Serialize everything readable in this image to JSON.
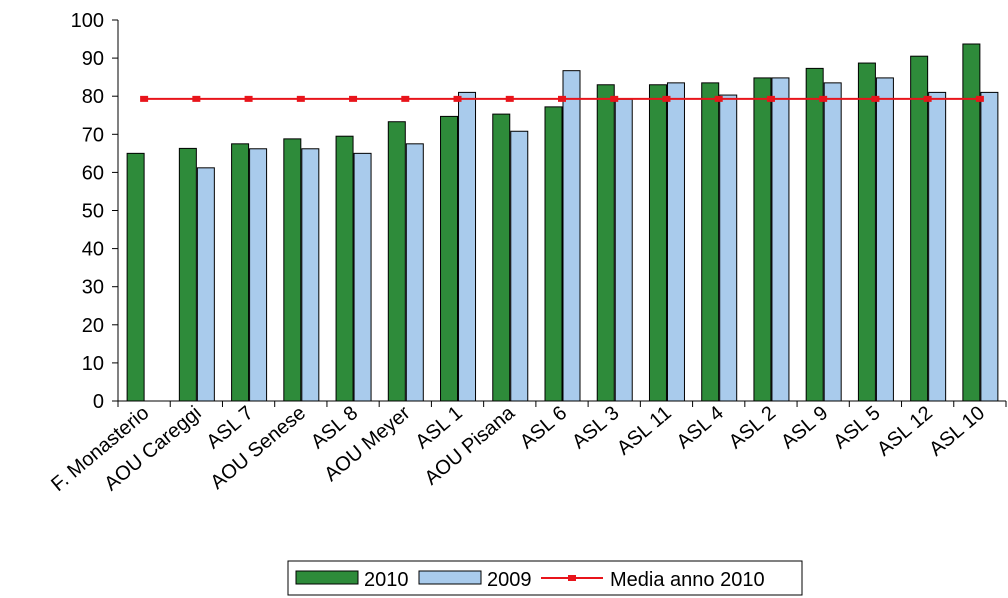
{
  "chart_data": {
    "type": "bar",
    "categories": [
      "F. Monasterio",
      "AOU Careggi",
      "ASL 7",
      "AOU Senese",
      "ASL 8",
      "AOU Meyer",
      "ASL 1",
      "AOU Pisana",
      "ASL 6",
      "ASL 3",
      "ASL 11",
      "ASL 4",
      "ASL 2",
      "ASL 9",
      "ASL 5",
      "ASL 12",
      "ASL 10"
    ],
    "series": [
      {
        "name": "2010",
        "color": "#2e8b3a",
        "values": [
          65,
          66.3,
          67.5,
          68.8,
          69.5,
          73.3,
          74.7,
          75.3,
          77.2,
          83,
          83,
          83.5,
          84.8,
          87.3,
          88.7,
          90.5,
          93.7
        ]
      },
      {
        "name": "2009",
        "color": "#a9cbec",
        "values": [
          null,
          61.2,
          66.2,
          66.2,
          65,
          67.5,
          81,
          70.8,
          86.7,
          79.2,
          83.5,
          80.3,
          84.8,
          83.5,
          84.8,
          81,
          81
        ]
      }
    ],
    "reference_line": {
      "name": "Media anno 2010",
      "value": 79.3,
      "color": "#e8141b"
    },
    "ylim": [
      0,
      100
    ],
    "yticks": [
      0,
      10,
      20,
      30,
      40,
      50,
      60,
      70,
      80,
      90,
      100
    ],
    "grid": false,
    "legend_position": "bottom",
    "title": "",
    "xlabel": "",
    "ylabel": ""
  }
}
